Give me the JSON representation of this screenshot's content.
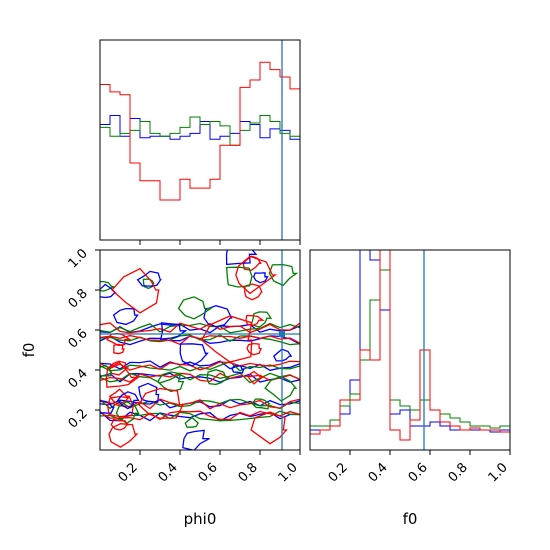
{
  "chart_data": [
    {
      "type": "histogram",
      "panel": "phi0 marginal",
      "xlim": [
        0,
        1
      ],
      "yticks_shown": false,
      "bin_edges": [
        0,
        0.05,
        0.1,
        0.15,
        0.2,
        0.25,
        0.3,
        0.35,
        0.4,
        0.45,
        0.5,
        0.55,
        0.6,
        0.65,
        0.7,
        0.75,
        0.8,
        0.85,
        0.9,
        0.95,
        1.0
      ],
      "series": [
        {
          "color": "#0000ff",
          "values": [
            0.78,
            0.84,
            0.7,
            0.82,
            0.69,
            0.7,
            0.7,
            0.68,
            0.7,
            0.72,
            0.8,
            0.68,
            0.7,
            0.72,
            0.8,
            0.78,
            0.69,
            0.75,
            0.74,
            0.68
          ]
        },
        {
          "color": "#008000",
          "values": [
            0.76,
            0.7,
            0.72,
            0.74,
            0.8,
            0.72,
            0.7,
            0.72,
            0.76,
            0.83,
            0.78,
            0.8,
            0.77,
            0.64,
            0.74,
            0.79,
            0.84,
            0.8,
            0.72,
            0.7
          ]
        },
        {
          "color": "#ff0000",
          "values": [
            1.05,
            1.0,
            0.98,
            0.52,
            0.4,
            0.4,
            0.27,
            0.27,
            0.41,
            0.35,
            0.35,
            0.41,
            0.64,
            0.64,
            1.03,
            1.08,
            1.2,
            1.15,
            1.1,
            1.02
          ]
        }
      ],
      "truth_line": {
        "x": 0.91,
        "color": "#1f77b4"
      }
    },
    {
      "type": "contour",
      "panel": "phi0 vs f0",
      "xlim": [
        0,
        1
      ],
      "ylim": [
        0,
        1
      ],
      "xticks": [
        "0.2",
        "0.4",
        "0.6",
        "0.8",
        "1.0"
      ],
      "yticks": [
        "0.2",
        "0.4",
        "0.6",
        "0.8",
        "1.0"
      ],
      "xlabel": "phi0",
      "ylabel": "f0",
      "bands": [
        {
          "y": 0.2,
          "colors": [
            "#0000ff",
            "#008000",
            "#ff0000"
          ]
        },
        {
          "y": 0.39,
          "colors": [
            "#0000ff",
            "#008000",
            "#ff0000"
          ]
        },
        {
          "y": 0.58,
          "colors": [
            "#0000ff",
            "#008000",
            "#ff0000"
          ]
        }
      ],
      "truth_lines": {
        "x": 0.91,
        "y": 0.58,
        "color": "#1f77b4"
      }
    },
    {
      "type": "histogram",
      "panel": "f0 marginal",
      "xlim": [
        0,
        1
      ],
      "xticks": [
        "0.2",
        "0.4",
        "0.6",
        "0.8",
        "1.0"
      ],
      "xlabel": "f0",
      "bin_edges": [
        0,
        0.05,
        0.1,
        0.15,
        0.2,
        0.25,
        0.3,
        0.35,
        0.4,
        0.45,
        0.5,
        0.55,
        0.6,
        0.65,
        0.7,
        0.75,
        0.8,
        0.85,
        0.9,
        0.95,
        1.0
      ],
      "series": [
        {
          "color": "#0000ff",
          "values": [
            0.1,
            0.1,
            0.15,
            0.18,
            0.35,
            1.0,
            0.95,
            0.7,
            0.18,
            0.2,
            0.12,
            0.12,
            0.14,
            0.12,
            0.1,
            0.1,
            0.1,
            0.1,
            0.09,
            0.1
          ]
        },
        {
          "color": "#008000",
          "values": [
            0.12,
            0.12,
            0.15,
            0.22,
            0.28,
            0.45,
            0.75,
            0.9,
            0.25,
            0.22,
            0.2,
            0.25,
            0.2,
            0.18,
            0.16,
            0.14,
            0.12,
            0.12,
            0.11,
            0.12
          ]
        },
        {
          "color": "#ff0000",
          "values": [
            0.08,
            0.1,
            0.12,
            0.25,
            0.25,
            0.5,
            0.45,
            1.0,
            0.1,
            0.05,
            0.15,
            0.5,
            0.2,
            0.14,
            0.12,
            0.1,
            0.11,
            0.1,
            0.1,
            0.09
          ]
        }
      ],
      "truth_line": {
        "x": 0.57,
        "color": "#1f77b4"
      }
    }
  ]
}
